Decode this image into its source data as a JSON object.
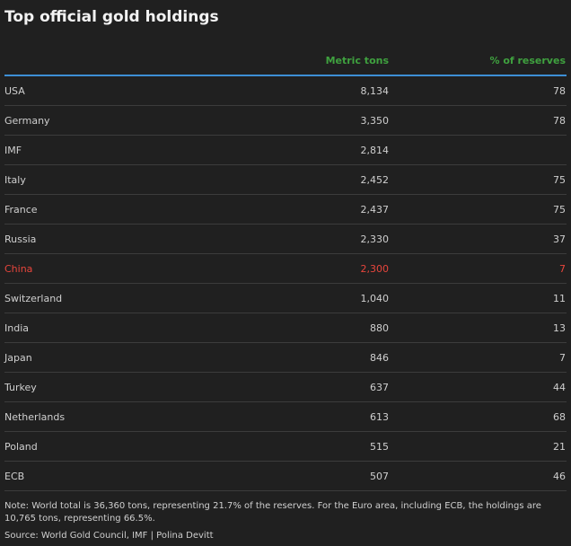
{
  "header": {
    "title": "Top official gold holdings"
  },
  "table": {
    "columns": [
      "Metric tons",
      "% of reserves"
    ],
    "rows": [
      [
        "USA",
        "8,134",
        "78"
      ],
      [
        "Germany",
        "3,350",
        "78"
      ],
      [
        "IMF",
        "2,814",
        null
      ],
      [
        "Italy",
        "2,452",
        "75"
      ],
      [
        "France",
        "2,437",
        "75"
      ],
      [
        "Russia",
        "2,330",
        "37"
      ],
      [
        "China",
        "2,300",
        "7"
      ],
      [
        "Switzerland",
        "1,040",
        "11"
      ],
      [
        "India",
        "880",
        "13"
      ],
      [
        "Japan",
        "846",
        "7"
      ],
      [
        "Turkey",
        "637",
        "44"
      ],
      [
        "Netherlands",
        "613",
        "68"
      ],
      [
        "Poland",
        "515",
        "21"
      ],
      [
        "ECB",
        "507",
        "46"
      ]
    ]
  },
  "footer": {
    "note": "Note: World total is 36,360 tons, representing 21.7% of the reserves. For the Euro area, including ECB, the holdings are 10,765 tons, representing 66.5%.",
    "source": "Source: World Gold Council, IMF | Polina Devitt"
  }
}
